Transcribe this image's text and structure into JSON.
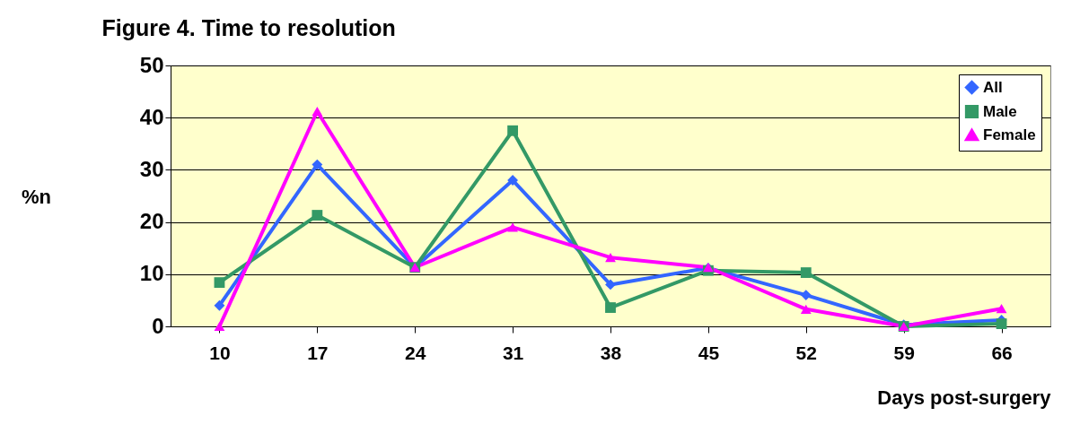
{
  "chart_data": {
    "type": "line",
    "title": "Figure 4. Time to resolution",
    "xlabel": "Days post-surgery",
    "ylabel": "%n",
    "categories": [
      "10",
      "17",
      "24",
      "31",
      "38",
      "45",
      "52",
      "59",
      "66"
    ],
    "series": [
      {
        "name": "All",
        "color": "#3366ff",
        "marker": "diamond",
        "values": [
          4,
          31,
          11.3,
          28,
          8,
          11.2,
          6,
          0.3,
          1.2
        ]
      },
      {
        "name": "Male",
        "color": "#339966",
        "marker": "square",
        "values": [
          8.4,
          21.3,
          11.3,
          37.5,
          3.6,
          10.7,
          10.3,
          0,
          0.5
        ]
      },
      {
        "name": "Female",
        "color": "#ff00ff",
        "marker": "triangle",
        "values": [
          0,
          41.2,
          11.3,
          19,
          13.2,
          11.3,
          3.3,
          0,
          3.4
        ]
      }
    ],
    "ylim": [
      0,
      50
    ],
    "yticks": [
      0,
      10,
      20,
      30,
      40,
      50
    ],
    "grid": "y",
    "legend": "top right"
  }
}
